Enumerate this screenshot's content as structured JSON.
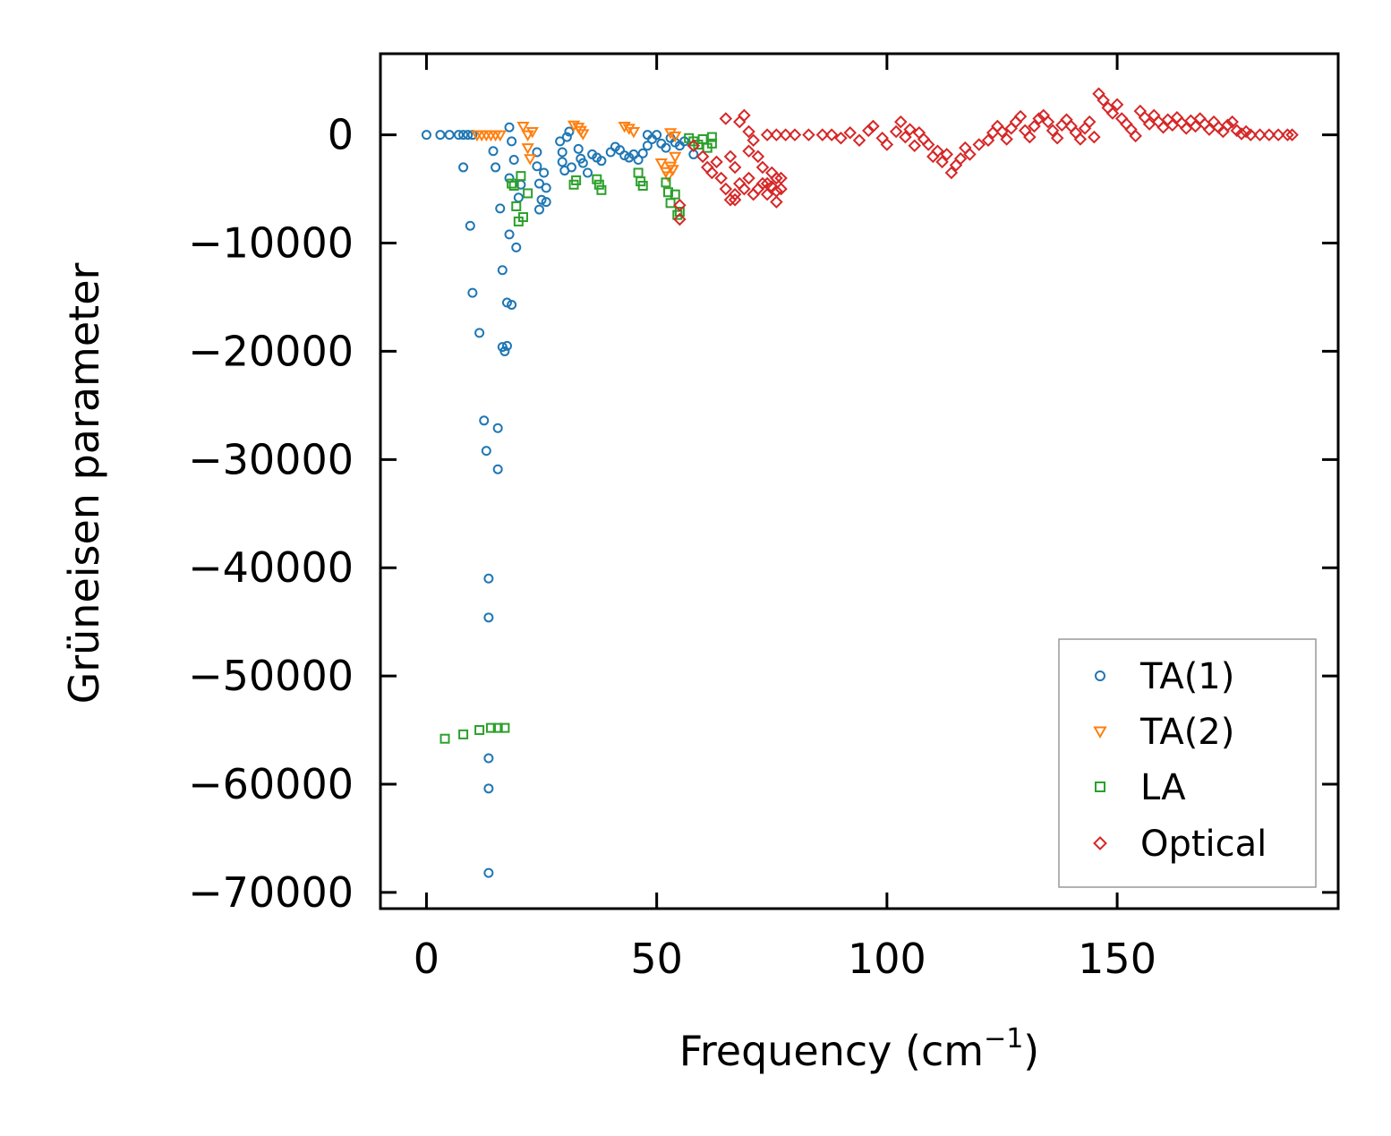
{
  "chart_data": {
    "type": "scatter",
    "title": "",
    "xlabel": "Frequency (cm",
    "xlabel_sup": "−1",
    "xlabel_end": ")",
    "ylabel": "Grüneisen parameter",
    "xlim": [
      -10,
      198
    ],
    "ylim": [
      -71500,
      7500
    ],
    "x_ticks": [
      0,
      50,
      100,
      150
    ],
    "x_tick_labels": [
      "0",
      "50",
      "100",
      "150"
    ],
    "y_ticks": [
      0,
      -10000,
      -20000,
      -30000,
      -40000,
      -50000,
      -60000,
      -70000
    ],
    "y_tick_labels": [
      "0",
      "−10000",
      "−20000",
      "−30000",
      "−40000",
      "−50000",
      "−60000",
      "−70000"
    ],
    "legend_position": "lower right",
    "series": [
      {
        "name": "TA(1)",
        "marker": "circle",
        "color": "#1f77b4",
        "points": [
          [
            0,
            0
          ],
          [
            3,
            0
          ],
          [
            5,
            0
          ],
          [
            7,
            0
          ],
          [
            8,
            0
          ],
          [
            9,
            0
          ],
          [
            10,
            0
          ],
          [
            8,
            -3000
          ],
          [
            9.5,
            -8400
          ],
          [
            10,
            -14600
          ],
          [
            11.5,
            -18300
          ],
          [
            12.5,
            -26400
          ],
          [
            13,
            -29200
          ],
          [
            13.5,
            -41000
          ],
          [
            13.5,
            -44600
          ],
          [
            13.5,
            -57600
          ],
          [
            13.5,
            -60400
          ],
          [
            13.5,
            -68200
          ],
          [
            14.5,
            -1500
          ],
          [
            15,
            -3000
          ],
          [
            15.5,
            -27100
          ],
          [
            15.5,
            -30900
          ],
          [
            16,
            -6800
          ],
          [
            16.5,
            -12500
          ],
          [
            16.5,
            -19600
          ],
          [
            17,
            -20000
          ],
          [
            17.5,
            -15500
          ],
          [
            17.5,
            -19500
          ],
          [
            18,
            -9200
          ],
          [
            18.5,
            -15700
          ],
          [
            18,
            -4000
          ],
          [
            18.5,
            -600
          ],
          [
            18,
            700
          ],
          [
            19,
            -2300
          ],
          [
            19.5,
            -10400
          ],
          [
            20,
            -5800
          ],
          [
            20.5,
            -4600
          ],
          [
            24,
            -1600
          ],
          [
            24,
            -2900
          ],
          [
            24.5,
            -4500
          ],
          [
            25,
            -6000
          ],
          [
            24.5,
            -6900
          ],
          [
            25.5,
            -3500
          ],
          [
            26,
            -4900
          ],
          [
            26,
            -6200
          ],
          [
            29,
            -600
          ],
          [
            29.5,
            -1600
          ],
          [
            29.5,
            -2500
          ],
          [
            30,
            -3300
          ],
          [
            30.5,
            -200
          ],
          [
            31,
            300
          ],
          [
            31.5,
            -3000
          ],
          [
            33,
            -1300
          ],
          [
            33.5,
            -2200
          ],
          [
            34,
            -2600
          ],
          [
            35,
            -3500
          ],
          [
            36,
            -1800
          ],
          [
            37,
            -2100
          ],
          [
            38,
            -2400
          ],
          [
            40,
            -1600
          ],
          [
            41,
            -1100
          ],
          [
            42,
            -1400
          ],
          [
            43,
            -1900
          ],
          [
            44,
            -2100
          ],
          [
            45,
            -1800
          ],
          [
            46,
            -2300
          ],
          [
            47,
            -1700
          ],
          [
            48,
            -1000
          ],
          [
            48,
            0
          ],
          [
            49,
            -400
          ],
          [
            50,
            0
          ],
          [
            51,
            -800
          ],
          [
            52,
            -1200
          ],
          [
            53,
            -300
          ],
          [
            54,
            -700
          ],
          [
            55,
            -1000
          ],
          [
            56,
            -600
          ],
          [
            58,
            -1800
          ]
        ]
      },
      {
        "name": "TA(2)",
        "marker": "triangle_down",
        "color": "#ff7f0e",
        "points": [
          [
            11,
            0
          ],
          [
            12,
            0
          ],
          [
            13,
            0
          ],
          [
            14,
            0
          ],
          [
            15,
            0
          ],
          [
            16,
            0
          ],
          [
            21,
            800
          ],
          [
            22,
            -1200
          ],
          [
            22.5,
            -2200
          ],
          [
            23,
            300
          ],
          [
            22,
            0
          ],
          [
            32,
            900
          ],
          [
            33,
            700
          ],
          [
            33.5,
            400
          ],
          [
            34,
            100
          ],
          [
            43,
            800
          ],
          [
            44,
            600
          ],
          [
            45,
            300
          ],
          [
            51,
            -2600
          ],
          [
            52,
            -3400
          ],
          [
            52.5,
            -3800
          ],
          [
            53,
            -2900
          ],
          [
            53.5,
            -3200
          ],
          [
            54,
            -2000
          ],
          [
            53,
            200
          ],
          [
            54,
            -100
          ]
        ]
      },
      {
        "name": "LA",
        "marker": "square",
        "color": "#2ca02c",
        "points": [
          [
            4,
            -55800
          ],
          [
            8,
            -55400
          ],
          [
            11.5,
            -55000
          ],
          [
            14,
            -54800
          ],
          [
            15.5,
            -54800
          ],
          [
            17,
            -54800
          ],
          [
            18.5,
            -4500
          ],
          [
            19,
            -4700
          ],
          [
            19.5,
            -6600
          ],
          [
            20,
            -8000
          ],
          [
            20.5,
            -3800
          ],
          [
            21,
            -7600
          ],
          [
            22,
            -5400
          ],
          [
            32,
            -4600
          ],
          [
            32.5,
            -4200
          ],
          [
            37,
            -4100
          ],
          [
            37.5,
            -4600
          ],
          [
            38,
            -5100
          ],
          [
            46,
            -3500
          ],
          [
            46.5,
            -4300
          ],
          [
            47,
            -4700
          ],
          [
            52,
            -4400
          ],
          [
            52.5,
            -5300
          ],
          [
            53,
            -6300
          ],
          [
            54,
            -5500
          ],
          [
            54.5,
            -7400
          ],
          [
            55,
            -7100
          ],
          [
            57,
            -300
          ],
          [
            58,
            -600
          ],
          [
            59,
            -900
          ],
          [
            60,
            -400
          ],
          [
            61,
            -1200
          ],
          [
            62,
            -200
          ],
          [
            62,
            -800
          ]
        ]
      },
      {
        "name": "Optical",
        "marker": "diamond",
        "color": "#d62728",
        "points": [
          [
            55,
            -6500
          ],
          [
            55,
            -7800
          ],
          [
            58,
            -1000
          ],
          [
            60,
            -2000
          ],
          [
            61,
            -3000
          ],
          [
            62,
            -3500
          ],
          [
            63,
            -2500
          ],
          [
            64,
            -4000
          ],
          [
            65,
            -5000
          ],
          [
            65,
            1500
          ],
          [
            66,
            -6000
          ],
          [
            67,
            -5500
          ],
          [
            67,
            -6000
          ],
          [
            68,
            -4500
          ],
          [
            68,
            1200
          ],
          [
            69,
            -5000
          ],
          [
            69,
            1800
          ],
          [
            70,
            -4000
          ],
          [
            70,
            300
          ],
          [
            71,
            -5500
          ],
          [
            72,
            -5000
          ],
          [
            72,
            -2000
          ],
          [
            73,
            -4500
          ],
          [
            74,
            -5500
          ],
          [
            75,
            -4800
          ],
          [
            76,
            -5200
          ],
          [
            76,
            -6200
          ],
          [
            66,
            -2000
          ],
          [
            67,
            -3000
          ],
          [
            70,
            -1500
          ],
          [
            71,
            -500
          ],
          [
            73,
            -3000
          ],
          [
            74,
            -4500
          ],
          [
            75,
            -3500
          ],
          [
            76,
            -4000
          ],
          [
            77,
            -5000
          ],
          [
            77,
            -4000
          ],
          [
            74,
            0
          ],
          [
            76,
            0
          ],
          [
            78,
            0
          ],
          [
            80,
            0
          ],
          [
            83,
            0
          ],
          [
            86,
            0
          ],
          [
            88,
            0
          ],
          [
            90,
            -300
          ],
          [
            92,
            200
          ],
          [
            94,
            -500
          ],
          [
            96,
            400
          ],
          [
            97,
            800
          ],
          [
            99,
            -300
          ],
          [
            100,
            -900
          ],
          [
            102,
            300
          ],
          [
            103,
            1200
          ],
          [
            104,
            -200
          ],
          [
            105,
            500
          ],
          [
            106,
            -1000
          ],
          [
            107,
            200
          ],
          [
            108,
            -400
          ],
          [
            109,
            -900
          ],
          [
            110,
            -2000
          ],
          [
            111,
            -1500
          ],
          [
            112,
            -2500
          ],
          [
            113,
            -1800
          ],
          [
            114,
            -3500
          ],
          [
            115,
            -2800
          ],
          [
            116,
            -2200
          ],
          [
            117,
            -1200
          ],
          [
            118,
            -1800
          ],
          [
            120,
            -900
          ],
          [
            122,
            -500
          ],
          [
            123,
            200
          ],
          [
            124,
            800
          ],
          [
            125,
            300
          ],
          [
            126,
            -400
          ],
          [
            127,
            600
          ],
          [
            128,
            1200
          ],
          [
            129,
            1700
          ],
          [
            130,
            400
          ],
          [
            131,
            -200
          ],
          [
            132,
            800
          ],
          [
            133,
            1500
          ],
          [
            134,
            1800
          ],
          [
            135,
            1200
          ],
          [
            136,
            400
          ],
          [
            137,
            -300
          ],
          [
            138,
            900
          ],
          [
            139,
            1400
          ],
          [
            140,
            800
          ],
          [
            141,
            200
          ],
          [
            142,
            -400
          ],
          [
            143,
            600
          ],
          [
            144,
            1200
          ],
          [
            145,
            -200
          ],
          [
            146,
            3800
          ],
          [
            147,
            3200
          ],
          [
            148,
            2500
          ],
          [
            149,
            2000
          ],
          [
            150,
            2800
          ],
          [
            151,
            1500
          ],
          [
            152,
            1000
          ],
          [
            153,
            500
          ],
          [
            154,
            -100
          ],
          [
            155,
            2200
          ],
          [
            156,
            1600
          ],
          [
            157,
            1000
          ],
          [
            158,
            1800
          ],
          [
            159,
            1200
          ],
          [
            160,
            700
          ],
          [
            161,
            1400
          ],
          [
            162,
            900
          ],
          [
            163,
            1600
          ],
          [
            164,
            1100
          ],
          [
            165,
            600
          ],
          [
            166,
            1300
          ],
          [
            167,
            800
          ],
          [
            168,
            1500
          ],
          [
            169,
            1000
          ],
          [
            170,
            500
          ],
          [
            171,
            1200
          ],
          [
            172,
            700
          ],
          [
            173,
            300
          ],
          [
            174,
            900
          ],
          [
            175,
            1200
          ],
          [
            176,
            400
          ],
          [
            177,
            100
          ],
          [
            178,
            300
          ],
          [
            179,
            0
          ],
          [
            181,
            0
          ],
          [
            183,
            0
          ],
          [
            185,
            0
          ],
          [
            187,
            0
          ],
          [
            188,
            0
          ]
        ]
      }
    ]
  }
}
